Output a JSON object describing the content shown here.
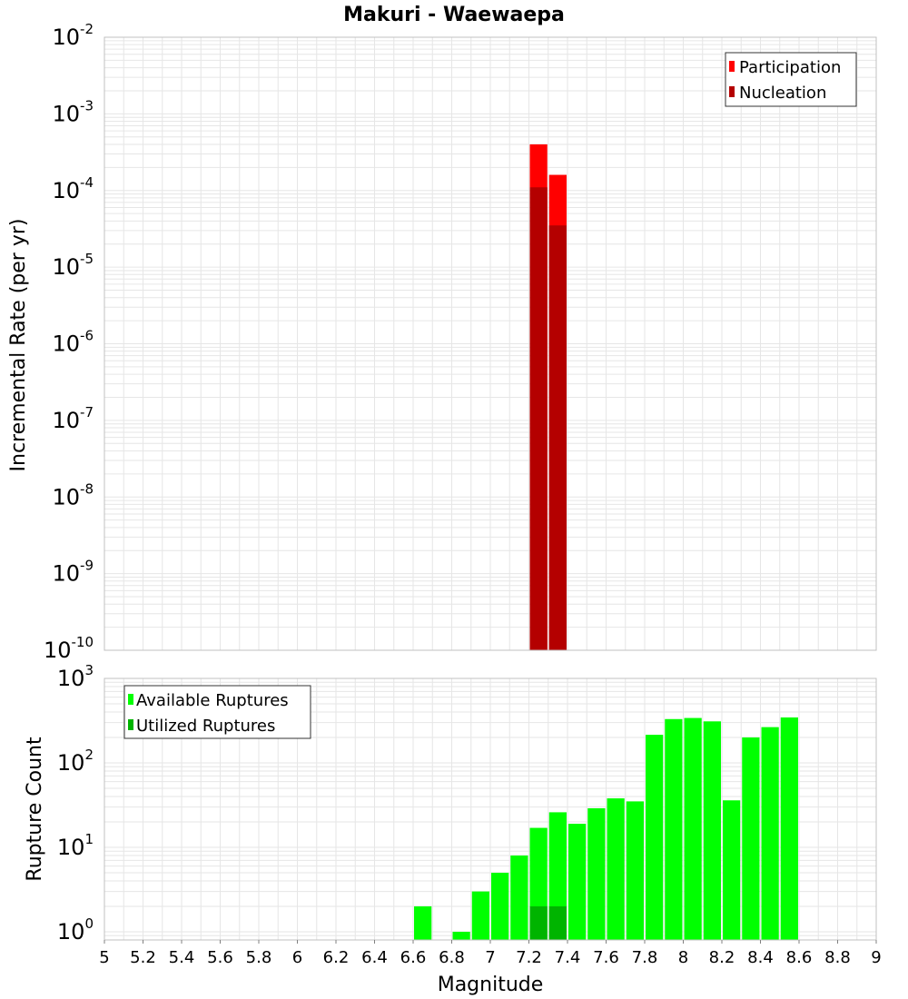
{
  "title": "Makuri - Waewaepa",
  "xlabel": "Magnitude",
  "colors": {
    "participation": "#ff0000",
    "nucleation": "#b40000",
    "available": "#00ff00",
    "utilized": "#00b400",
    "grid": "#e6e6e6",
    "frame": "#c0c0c0"
  },
  "chart_data": [
    {
      "type": "bar",
      "ylabel": "Incremental Rate (per yr)",
      "yscale": "log",
      "ylim": [
        1e-10,
        0.01
      ],
      "xlim": [
        5,
        9
      ],
      "bin_width": 0.1,
      "grid": true,
      "legend_position": "top-right",
      "y_ticks": [
        {
          "base": "10",
          "exp": "-10",
          "value": 1e-10
        },
        {
          "base": "10",
          "exp": "-9",
          "value": 1e-09
        },
        {
          "base": "10",
          "exp": "-8",
          "value": 1e-08
        },
        {
          "base": "10",
          "exp": "-7",
          "value": 1e-07
        },
        {
          "base": "10",
          "exp": "-6",
          "value": 1e-06
        },
        {
          "base": "10",
          "exp": "-5",
          "value": 1e-05
        },
        {
          "base": "10",
          "exp": "-4",
          "value": 0.0001
        },
        {
          "base": "10",
          "exp": "-3",
          "value": 0.001
        },
        {
          "base": "10",
          "exp": "-2",
          "value": 0.01
        }
      ],
      "series": [
        {
          "name": "Participation",
          "color_key": "participation",
          "points": [
            {
              "x": 7.25,
              "y": 0.0004
            },
            {
              "x": 7.35,
              "y": 0.00016
            }
          ]
        },
        {
          "name": "Nucleation",
          "color_key": "nucleation",
          "points": [
            {
              "x": 7.25,
              "y": 0.00011
            },
            {
              "x": 7.35,
              "y": 3.5e-05
            }
          ]
        }
      ]
    },
    {
      "type": "bar",
      "ylabel": "Rupture Count",
      "yscale": "log",
      "ylim": [
        0.8,
        1000
      ],
      "xlim": [
        5,
        9
      ],
      "bin_width": 0.1,
      "grid": true,
      "legend_position": "top-left",
      "y_ticks": [
        {
          "base": "10",
          "exp": "0",
          "value": 1
        },
        {
          "base": "10",
          "exp": "1",
          "value": 10
        },
        {
          "base": "10",
          "exp": "2",
          "value": 100
        },
        {
          "base": "10",
          "exp": "3",
          "value": 1000
        }
      ],
      "series": [
        {
          "name": "Available Ruptures",
          "color_key": "available",
          "points": [
            {
              "x": 6.65,
              "y": 2
            },
            {
              "x": 6.85,
              "y": 1
            },
            {
              "x": 6.95,
              "y": 3
            },
            {
              "x": 7.05,
              "y": 5
            },
            {
              "x": 7.15,
              "y": 8
            },
            {
              "x": 7.25,
              "y": 17
            },
            {
              "x": 7.35,
              "y": 26
            },
            {
              "x": 7.45,
              "y": 19
            },
            {
              "x": 7.55,
              "y": 29
            },
            {
              "x": 7.65,
              "y": 38
            },
            {
              "x": 7.75,
              "y": 35
            },
            {
              "x": 7.85,
              "y": 215
            },
            {
              "x": 7.95,
              "y": 330
            },
            {
              "x": 8.05,
              "y": 340
            },
            {
              "x": 8.15,
              "y": 310
            },
            {
              "x": 8.25,
              "y": 36
            },
            {
              "x": 8.35,
              "y": 200
            },
            {
              "x": 8.45,
              "y": 265
            },
            {
              "x": 8.55,
              "y": 345
            }
          ]
        },
        {
          "name": "Utilized Ruptures",
          "color_key": "utilized",
          "points": [
            {
              "x": 7.25,
              "y": 2
            },
            {
              "x": 7.35,
              "y": 2
            }
          ]
        }
      ]
    }
  ],
  "x_ticks": [
    "5",
    "5.2",
    "5.4",
    "5.6",
    "5.8",
    "6",
    "6.2",
    "6.4",
    "6.6",
    "6.8",
    "7",
    "7.2",
    "7.4",
    "7.6",
    "7.8",
    "8",
    "8.2",
    "8.4",
    "8.6",
    "8.8",
    "9"
  ]
}
